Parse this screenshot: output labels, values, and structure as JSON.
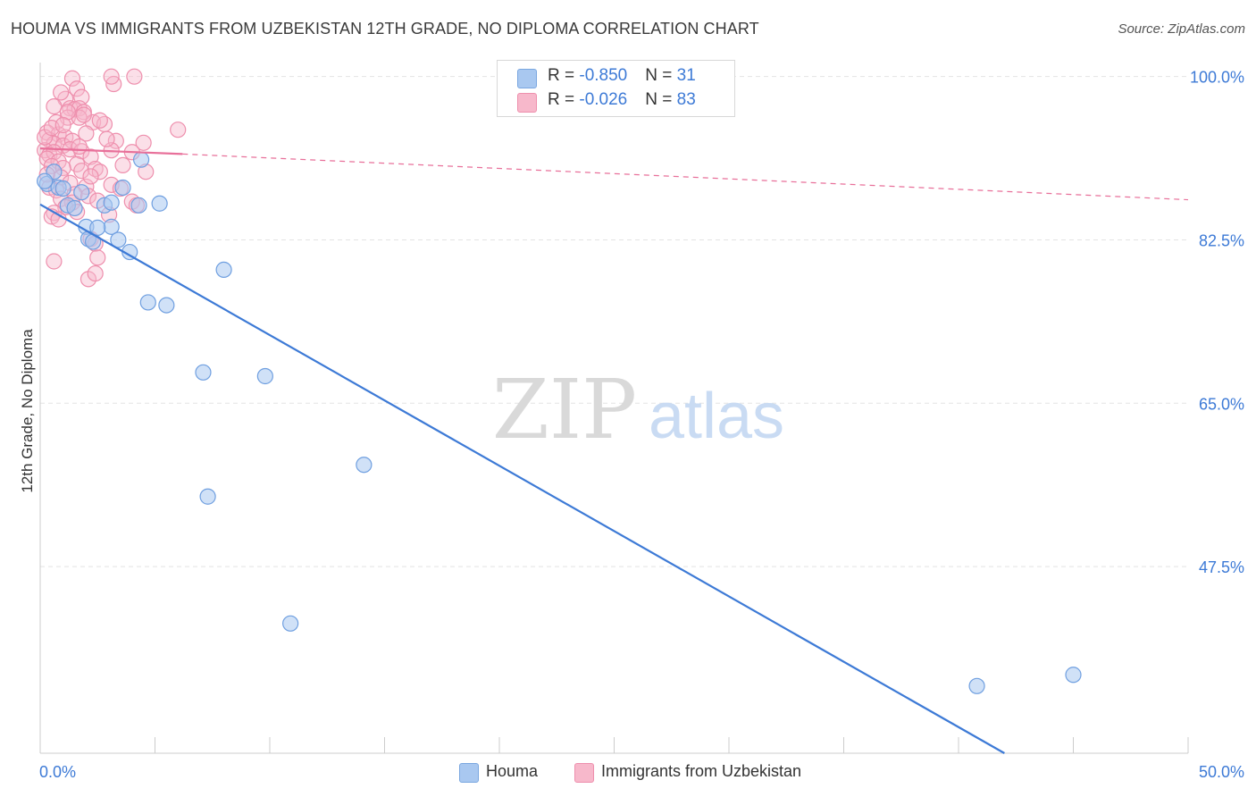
{
  "header": {
    "title": "HOUMA VS IMMIGRANTS FROM UZBEKISTAN 12TH GRADE, NO DIPLOMA CORRELATION CHART",
    "source": "Source: ZipAtlas.com"
  },
  "watermark": {
    "zip": "ZIP",
    "atlas": "atlas"
  },
  "legend": {
    "rows": [
      {
        "r_label": "R = ",
        "r_value": "-0.850",
        "n_label": "N = ",
        "n_value": "31",
        "color": "#a9c8f0",
        "stroke": "#7aa7e0"
      },
      {
        "r_label": "R = ",
        "r_value": "-0.026",
        "n_label": "N = ",
        "n_value": "83",
        "color": "#f7b8cb",
        "stroke": "#ee8fad"
      }
    ]
  },
  "bottom_legend": [
    {
      "label": "Houma",
      "color": "#a9c8f0",
      "stroke": "#7aa7e0"
    },
    {
      "label": "Immigrants from Uzbekistan",
      "color": "#f7b8cb",
      "stroke": "#ee8fad"
    }
  ],
  "chart_data": {
    "type": "scatter",
    "title": "HOUMA VS IMMIGRANTS FROM UZBEKISTAN 12TH GRADE, NO DIPLOMA CORRELATION CHART",
    "xlabel": "",
    "ylabel": "12th Grade, No Diploma",
    "xlim": [
      0,
      50
    ],
    "ylim": [
      27.5,
      101.5
    ],
    "x_tick_labels": [
      "0.0%",
      "50.0%"
    ],
    "y_ticks": [
      100.0,
      82.5,
      65.0,
      47.5
    ],
    "y_tick_labels": [
      "100.0%",
      "82.5%",
      "65.0%",
      "47.5%"
    ],
    "grid": true,
    "colors": {
      "blue": "#3d7ad6",
      "pink": "#e8709a",
      "grid": "#e4e4e4"
    },
    "series": [
      {
        "name": "Houma",
        "color": "#a9c8f0",
        "stroke": "#6f9fe0",
        "points": [
          [
            0.3,
            88.5
          ],
          [
            0.6,
            89.8
          ],
          [
            0.8,
            88.1
          ],
          [
            1.2,
            86.2
          ],
          [
            1.5,
            85.9
          ],
          [
            1.8,
            87.6
          ],
          [
            2.0,
            83.9
          ],
          [
            2.1,
            82.6
          ],
          [
            2.3,
            82.3
          ],
          [
            2.8,
            86.2
          ],
          [
            3.1,
            86.5
          ],
          [
            3.1,
            83.9
          ],
          [
            3.4,
            82.5
          ],
          [
            3.6,
            88.1
          ],
          [
            3.9,
            81.2
          ],
          [
            4.3,
            86.2
          ],
          [
            4.4,
            91.1
          ],
          [
            4.7,
            75.8
          ],
          [
            5.2,
            86.4
          ],
          [
            5.5,
            75.5
          ],
          [
            7.1,
            68.3
          ],
          [
            7.3,
            55.0
          ],
          [
            8.0,
            79.3
          ],
          [
            9.8,
            67.9
          ],
          [
            10.9,
            41.4
          ],
          [
            14.1,
            58.4
          ],
          [
            40.8,
            34.7
          ],
          [
            45.0,
            35.9
          ],
          [
            1.0,
            88.0
          ],
          [
            0.2,
            88.8
          ],
          [
            2.5,
            83.8
          ]
        ],
        "trend": {
          "x1": 0,
          "y1": 86.3,
          "x2": 42.0,
          "y2": 27.5,
          "style": "solid"
        }
      },
      {
        "name": "Immigrants from Uzbekistan",
        "color": "#f7b8cb",
        "stroke": "#ee8fad",
        "points": [
          [
            1.4,
            99.8
          ],
          [
            1.6,
            98.7
          ],
          [
            1.8,
            97.8
          ],
          [
            3.2,
            99.2
          ],
          [
            3.1,
            100.0
          ],
          [
            4.1,
            100.0
          ],
          [
            1.1,
            97.6
          ],
          [
            1.3,
            96.6
          ],
          [
            1.5,
            96.5
          ],
          [
            1.7,
            96.6
          ],
          [
            1.9,
            96.2
          ],
          [
            1.2,
            95.6
          ],
          [
            0.6,
            96.8
          ],
          [
            0.7,
            95.1
          ],
          [
            2.3,
            95.1
          ],
          [
            2.8,
            94.9
          ],
          [
            6.0,
            94.3
          ],
          [
            0.3,
            94.0
          ],
          [
            0.8,
            93.8
          ],
          [
            1.1,
            93.5
          ],
          [
            2.0,
            93.9
          ],
          [
            0.4,
            93.2
          ],
          [
            0.6,
            92.8
          ],
          [
            1.0,
            92.6
          ],
          [
            1.4,
            93.1
          ],
          [
            3.3,
            93.1
          ],
          [
            4.5,
            92.9
          ],
          [
            0.2,
            92.1
          ],
          [
            0.4,
            91.6
          ],
          [
            0.6,
            91.9
          ],
          [
            1.3,
            92.2
          ],
          [
            1.8,
            92.0
          ],
          [
            3.1,
            92.1
          ],
          [
            4.0,
            91.9
          ],
          [
            0.3,
            91.2
          ],
          [
            0.8,
            90.9
          ],
          [
            1.6,
            90.6
          ],
          [
            2.2,
            91.4
          ],
          [
            0.5,
            90.4
          ],
          [
            1.0,
            90.2
          ],
          [
            1.8,
            89.9
          ],
          [
            2.4,
            90.1
          ],
          [
            2.6,
            89.8
          ],
          [
            4.6,
            89.8
          ],
          [
            0.9,
            89.2
          ],
          [
            1.3,
            88.6
          ],
          [
            2.0,
            88.2
          ],
          [
            3.1,
            88.4
          ],
          [
            0.4,
            88.1
          ],
          [
            0.7,
            87.8
          ],
          [
            1.5,
            87.4
          ],
          [
            2.1,
            87.2
          ],
          [
            3.5,
            88.0
          ],
          [
            0.9,
            86.9
          ],
          [
            1.4,
            86.5
          ],
          [
            2.5,
            86.7
          ],
          [
            4.0,
            86.6
          ],
          [
            1.1,
            86.0
          ],
          [
            0.6,
            85.4
          ],
          [
            1.6,
            85.5
          ],
          [
            0.5,
            85.0
          ],
          [
            2.2,
            82.6
          ],
          [
            2.4,
            82.1
          ],
          [
            0.6,
            80.2
          ],
          [
            2.5,
            80.6
          ],
          [
            2.1,
            78.3
          ],
          [
            2.4,
            78.9
          ],
          [
            1.7,
            95.6
          ],
          [
            1.9,
            95.9
          ],
          [
            0.9,
            98.3
          ],
          [
            1.2,
            96.2
          ],
          [
            2.6,
            95.3
          ],
          [
            0.2,
            93.5
          ],
          [
            0.5,
            94.5
          ],
          [
            1.0,
            94.8
          ],
          [
            2.9,
            93.3
          ],
          [
            3.6,
            90.5
          ],
          [
            0.3,
            89.5
          ],
          [
            1.7,
            92.5
          ],
          [
            4.2,
            86.2
          ],
          [
            0.8,
            84.7
          ],
          [
            3.0,
            85.2
          ],
          [
            2.2,
            89.3
          ]
        ],
        "trend_solid": {
          "x1": 0,
          "y1": 92.3,
          "x2": 6.2,
          "y2": 91.7
        },
        "trend_dashed": {
          "x1": 6.2,
          "y1": 91.7,
          "x2": 50,
          "y2": 86.8
        }
      }
    ]
  }
}
